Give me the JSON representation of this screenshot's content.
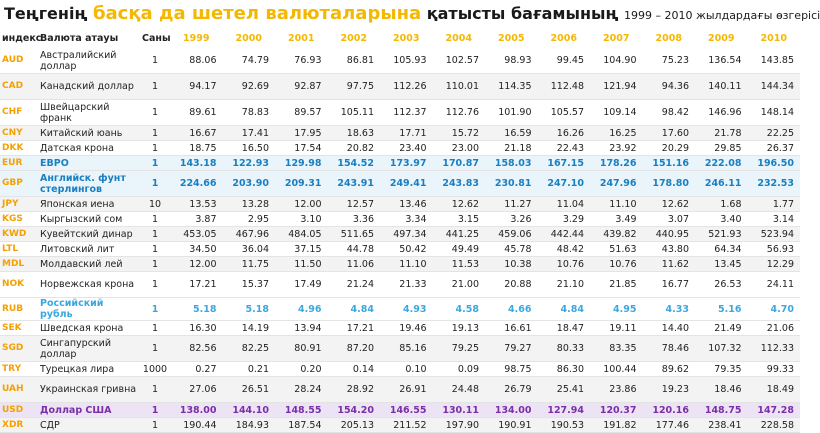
{
  "title": {
    "part1": "Теңгенің ",
    "highlight": "басқа да шетел валюталарына",
    "part2": " қатысты бағамының ",
    "years": "1999 – 2010 жылдардағы өзгерісі"
  },
  "table": {
    "header": [
      "индекс",
      "Валюта атауы",
      "Саны",
      "1999",
      "2000",
      "2001",
      "2002",
      "2003",
      "2004",
      "2005",
      "2006",
      "2007",
      "2008",
      "2009",
      "2010"
    ],
    "rows": [
      [
        "AUD",
        "Австралийский доллар",
        "1",
        "88.06",
        "74.79",
        "76.93",
        "86.81",
        "105.93",
        "102.57",
        "98.93",
        "99.45",
        "104.90",
        "75.23",
        "136.54",
        "143.85"
      ],
      [
        "CAD",
        "Канадский доллар",
        "1",
        "94.17",
        "92.69",
        "92.87",
        "97.75",
        "112.26",
        "110.01",
        "114.35",
        "112.48",
        "121.94",
        "94.36",
        "140.11",
        "144.34"
      ],
      [
        "CHF",
        "Швейцарский франк",
        "1",
        "89.61",
        "78.83",
        "89.57",
        "105.11",
        "112.37",
        "112.76",
        "101.90",
        "105.57",
        "109.14",
        "98.42",
        "146.96",
        "148.14"
      ],
      [
        "CNY",
        "Китайский юань",
        "1",
        "16.67",
        "17.41",
        "17.95",
        "18.63",
        "17.71",
        "15.72",
        "16.59",
        "16.26",
        "16.25",
        "17.60",
        "21.78",
        "22.25"
      ],
      [
        "DKK",
        "Датская крона",
        "1",
        "18.75",
        "16.50",
        "17.54",
        "20.82",
        "23.40",
        "23.00",
        "21.18",
        "22.43",
        "23.92",
        "20.29",
        "29.85",
        "26.37"
      ],
      [
        "EUR",
        "ЕВРО",
        "1",
        "143.18",
        "122.93",
        "129.98",
        "154.52",
        "173.97",
        "170.87",
        "158.03",
        "167.15",
        "178.26",
        "151.16",
        "222.08",
        "196.50"
      ],
      [
        "GBP",
        "Английск. фунт стерлингов",
        "1",
        "224.66",
        "203.90",
        "209.31",
        "243.91",
        "249.41",
        "243.83",
        "230.81",
        "247.10",
        "247.96",
        "178.80",
        "246.11",
        "232.53"
      ],
      [
        "JPY",
        "Японская иена",
        "10",
        "13.53",
        "13.28",
        "12.00",
        "12.57",
        "13.46",
        "12.62",
        "11.27",
        "11.04",
        "11.10",
        "12.62",
        "1.68",
        "1.77"
      ],
      [
        "KGS",
        "Кыргызский сом",
        "1",
        "3.87",
        "2.95",
        "3.10",
        "3.36",
        "3.34",
        "3.15",
        "3.26",
        "3.29",
        "3.49",
        "3.07",
        "3.40",
        "3.14"
      ],
      [
        "KWD",
        "Кувейтский динар",
        "1",
        "453.05",
        "467.96",
        "484.05",
        "511.65",
        "497.34",
        "441.25",
        "459.06",
        "442.44",
        "439.82",
        "440.95",
        "521.93",
        "523.94"
      ],
      [
        "LTL",
        "Литовский лит",
        "1",
        "34.50",
        "36.04",
        "37.15",
        "44.78",
        "50.42",
        "49.49",
        "45.78",
        "48.42",
        "51.63",
        "43.80",
        "64.34",
        "56.93"
      ],
      [
        "MDL",
        "Молдавский лей",
        "1",
        "12.00",
        "11.75",
        "11.50",
        "11.06",
        "11.10",
        "11.53",
        "10.38",
        "10.76",
        "10.76",
        "11.62",
        "13.45",
        "12.29"
      ],
      [
        "NOK",
        "Норвежская крона",
        "1",
        "17.21",
        "15.37",
        "17.49",
        "21.24",
        "21.33",
        "21.00",
        "20.88",
        "21.10",
        "21.85",
        "16.77",
        "26.53",
        "24.11"
      ],
      [
        "RUB",
        "Российский рубль",
        "1",
        "5.18",
        "5.18",
        "4.96",
        "4.84",
        "4.93",
        "4.58",
        "4.66",
        "4.84",
        "4.95",
        "4.33",
        "5.16",
        "4.70"
      ],
      [
        "SEK",
        "Шведская крона",
        "1",
        "16.30",
        "14.19",
        "13.94",
        "17.21",
        "19.46",
        "19.13",
        "16.61",
        "18.47",
        "19.11",
        "14.40",
        "21.49",
        "21.06"
      ],
      [
        "SGD",
        "Сингапурский доллар",
        "1",
        "82.56",
        "82.25",
        "80.91",
        "87.20",
        "85.16",
        "79.25",
        "79.27",
        "80.33",
        "83.35",
        "78.46",
        "107.32",
        "112.33"
      ],
      [
        "TRY",
        "Турецкая лира",
        "1000",
        "0.27",
        "0.21",
        "0.20",
        "0.14",
        "0.10",
        "0.09",
        "98.75",
        "86.30",
        "100.44",
        "89.62",
        "79.35",
        "99.33"
      ],
      [
        "UAH",
        "Украинская гривна",
        "1",
        "27.06",
        "26.51",
        "28.24",
        "28.92",
        "26.91",
        "24.48",
        "26.79",
        "25.41",
        "23.86",
        "19.23",
        "18.46",
        "18.49"
      ],
      [
        "USD",
        "Доллар США",
        "1",
        "138.00",
        "144.10",
        "148.55",
        "154.20",
        "146.55",
        "130.11",
        "134.00",
        "127.94",
        "120.37",
        "120.16",
        "148.75",
        "147.28"
      ],
      [
        "XDR",
        "СДР",
        "1",
        "190.44",
        "184.93",
        "187.54",
        "205.13",
        "211.52",
        "197.90",
        "190.91",
        "190.53",
        "191.82",
        "177.46",
        "238.41",
        "228.58"
      ]
    ]
  }
}
